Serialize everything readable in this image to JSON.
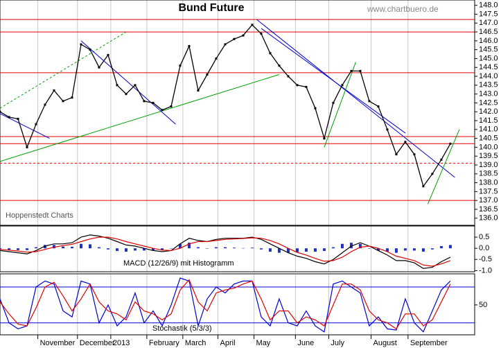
{
  "chart_data": [
    {
      "type": "line",
      "title": "Bund Future",
      "source": "www.chartbuero.de",
      "note": "Hoppenstedt Charts",
      "color": "#000000",
      "values": [
        142.0,
        141.7,
        141.6,
        140.0,
        141.3,
        142.4,
        143.2,
        142.6,
        142.8,
        145.8,
        145.5,
        144.5,
        145.2,
        143.5,
        143.0,
        143.5,
        142.6,
        142.5,
        142.1,
        142.3,
        144.6,
        145.7,
        143.2,
        144.1,
        145.0,
        145.8,
        146.1,
        146.3,
        146.9,
        146.4,
        145.3,
        144.6,
        144.0,
        143.5,
        143.4,
        142.2,
        140.5,
        142.5,
        143.5,
        144.3,
        144.3,
        142.6,
        142.3,
        141.0,
        139.6,
        140.3,
        139.6,
        137.8,
        138.5,
        139.3,
        140.2
      ],
      "xlim": [
        0,
        52.7
      ],
      "ylim": [
        135.6,
        148.3
      ],
      "yticks": [
        {
          "value": 136,
          "label": "136.0"
        },
        136.5,
        {
          "value": 137,
          "label": "137.0"
        },
        137.5,
        {
          "value": 138,
          "label": "138.0"
        },
        138.5,
        {
          "value": 139,
          "label": "139.0"
        },
        139.5,
        {
          "value": 140,
          "label": "140.0"
        },
        140.5,
        {
          "value": 141,
          "label": "141.0"
        },
        141.5,
        {
          "value": 142,
          "label": "142.0"
        },
        142.5,
        {
          "value": 143,
          "label": "143.0"
        },
        143.5,
        {
          "value": 144,
          "label": "144.0"
        },
        144.5,
        {
          "value": 145,
          "label": "145.0"
        },
        145.5,
        {
          "value": 146,
          "label": "146.0"
        },
        146.5,
        {
          "value": 147,
          "label": "147.0"
        },
        147.5,
        {
          "value": 148,
          "label": "148.0"
        }
      ],
      "hlines": [
        {
          "value": 147.2,
          "color": "#e00000"
        },
        {
          "value": 146.5,
          "color": "#e00000"
        },
        {
          "value": 144.2,
          "color": "#e00000"
        },
        {
          "value": 140.6,
          "color": "#e00000"
        },
        {
          "value": 140.2,
          "color": "#e00000"
        },
        {
          "value": 139.1,
          "color": "#e00000",
          "dashed": true
        },
        {
          "value": 137.0,
          "color": "#e00000"
        }
      ],
      "trendlines": [
        {
          "color": "#00a000",
          "x": [
            0,
            31
          ],
          "y": [
            139.2,
            144.1
          ]
        },
        {
          "color": "#00a000",
          "x": [
            0,
            14
          ],
          "y": [
            142.2,
            146.5
          ],
          "dashed": true
        },
        {
          "color": "#0000d0",
          "x": [
            9,
            19.5
          ],
          "y": [
            146.0,
            141.3
          ]
        },
        {
          "color": "#0000d0",
          "x": [
            0,
            5.5
          ],
          "y": [
            141.9,
            140.5
          ]
        },
        {
          "color": "#0000d0",
          "x": [
            28.5,
            50.5
          ],
          "y": [
            147.2,
            138.3
          ]
        },
        {
          "color": "#0000d0",
          "x": [
            29,
            45
          ],
          "y": [
            146.7,
            140.8
          ]
        },
        {
          "color": "#00a000",
          "x": [
            36,
            39.5
          ],
          "y": [
            140.0,
            144.8
          ]
        },
        {
          "color": "#00a000",
          "x": [
            47.5,
            51
          ],
          "y": [
            136.8,
            141.0
          ]
        }
      ]
    },
    {
      "type": "macd",
      "title": "MACD (12/26/9) mit Histogramm",
      "xlim": [
        0,
        52.7
      ],
      "ylim": [
        -1.05,
        1.0
      ],
      "yticks": [
        0.5,
        {
          "value": 0,
          "label": "0.0"
        },
        -0.5,
        {
          "value": -1,
          "label": "-1.0"
        }
      ],
      "series": [
        {
          "color": "#000000",
          "values": [
            -0.1,
            -0.15,
            -0.2,
            -0.25,
            -0.1,
            0.1,
            0.2,
            0.2,
            0.25,
            0.5,
            0.6,
            0.55,
            0.45,
            0.3,
            0.15,
            0.1,
            0.0,
            -0.1,
            -0.15,
            -0.1,
            0.2,
            0.45,
            0.35,
            0.3,
            0.4,
            0.45,
            0.45,
            0.45,
            0.5,
            0.4,
            0.2,
            0.0,
            -0.2,
            -0.35,
            -0.45,
            -0.6,
            -0.7,
            -0.5,
            -0.2,
            0.1,
            0.25,
            0.1,
            -0.1,
            -0.3,
            -0.55,
            -0.55,
            -0.65,
            -0.9,
            -0.85,
            -0.6,
            -0.4
          ]
        },
        {
          "color": "#e00000",
          "values": [
            -0.05,
            -0.08,
            -0.12,
            -0.17,
            -0.15,
            -0.05,
            0.05,
            0.12,
            0.18,
            0.3,
            0.42,
            0.5,
            0.5,
            0.42,
            0.3,
            0.2,
            0.1,
            0.0,
            -0.08,
            -0.1,
            0.0,
            0.2,
            0.3,
            0.3,
            0.35,
            0.4,
            0.42,
            0.44,
            0.47,
            0.45,
            0.35,
            0.2,
            0.0,
            -0.18,
            -0.3,
            -0.45,
            -0.58,
            -0.55,
            -0.4,
            -0.15,
            0.05,
            0.1,
            0.0,
            -0.15,
            -0.35,
            -0.45,
            -0.55,
            -0.75,
            -0.8,
            -0.7,
            -0.55
          ]
        }
      ],
      "histogram": [
        -0.05,
        -0.07,
        -0.08,
        -0.08,
        0.05,
        0.15,
        0.15,
        0.08,
        0.07,
        0.2,
        0.18,
        0.05,
        -0.05,
        -0.12,
        -0.15,
        -0.1,
        -0.1,
        -0.1,
        -0.07,
        0.0,
        0.2,
        0.25,
        0.05,
        0.0,
        0.05,
        0.05,
        0.03,
        0.01,
        0.03,
        -0.05,
        -0.15,
        -0.2,
        -0.2,
        -0.17,
        -0.15,
        -0.15,
        -0.12,
        0.05,
        0.2,
        0.25,
        0.2,
        0.0,
        -0.1,
        -0.15,
        -0.2,
        -0.1,
        -0.1,
        -0.15,
        -0.05,
        0.1,
        0.15
      ],
      "histogram_color": "#2030c0"
    },
    {
      "type": "line",
      "title": "Stochastik (5/3/3)",
      "xlim": [
        0,
        52.7
      ],
      "ylim": [
        0,
        102
      ],
      "yticks": [
        50
      ],
      "hlines": [
        {
          "value": 80,
          "color": "#0000d0"
        },
        {
          "value": 20,
          "color": "#0000d0"
        }
      ],
      "series": [
        {
          "color": "#0000d0",
          "values": [
            60,
            20,
            10,
            15,
            80,
            90,
            85,
            40,
            30,
            90,
            85,
            20,
            50,
            15,
            30,
            70,
            20,
            40,
            15,
            50,
            95,
            90,
            15,
            60,
            80,
            70,
            85,
            90,
            90,
            30,
            15,
            60,
            20,
            15,
            40,
            15,
            5,
            85,
            90,
            80,
            70,
            15,
            30,
            10,
            8,
            60,
            20,
            5,
            40,
            75,
            90
          ]
        },
        {
          "color": "#e00000",
          "values": [
            55,
            35,
            18,
            15,
            45,
            80,
            88,
            65,
            40,
            60,
            85,
            55,
            40,
            35,
            25,
            55,
            40,
            35,
            25,
            35,
            75,
            92,
            55,
            40,
            70,
            75,
            78,
            85,
            90,
            60,
            25,
            40,
            40,
            20,
            30,
            25,
            15,
            50,
            85,
            85,
            75,
            40,
            25,
            20,
            10,
            35,
            35,
            15,
            25,
            55,
            85
          ]
        }
      ],
      "xticks": [
        {
          "value": 4.2,
          "label": "November"
        },
        {
          "value": 8.6,
          "label": "December"
        },
        {
          "value": 12.3,
          "label": "2013"
        },
        {
          "value": 16.3,
          "label": "February"
        },
        {
          "value": 20.3,
          "label": "March"
        },
        {
          "value": 24.2,
          "label": "April"
        },
        {
          "value": 28.2,
          "label": "May"
        },
        {
          "value": 32.8,
          "label": "June"
        },
        {
          "value": 36.5,
          "label": "July"
        },
        {
          "value": 41.2,
          "label": "August"
        },
        {
          "value": 45.3,
          "label": "September"
        }
      ]
    }
  ]
}
